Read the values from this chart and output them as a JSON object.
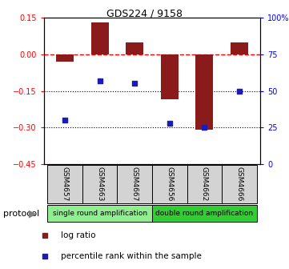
{
  "title": "GDS224 / 9158",
  "samples": [
    "GSM4657",
    "GSM4663",
    "GSM4667",
    "GSM4656",
    "GSM4662",
    "GSM4666"
  ],
  "log_ratio": [
    -0.03,
    0.13,
    0.05,
    -0.185,
    -0.31,
    0.05
  ],
  "percentile_rank": [
    30,
    57,
    55,
    28,
    25,
    50
  ],
  "ylim_left": [
    -0.45,
    0.15
  ],
  "ylim_right": [
    0,
    100
  ],
  "yticks_left": [
    0.15,
    0,
    -0.15,
    -0.3,
    -0.45
  ],
  "yticks_right": [
    100,
    75,
    50,
    25,
    0
  ],
  "hlines_dotted": [
    -0.15,
    -0.3
  ],
  "hline_dashed": 0,
  "bar_color": "#8B1A1A",
  "dot_color": "#1C1CB4",
  "group1_color": "#90EE90",
  "group2_color": "#32CD32",
  "group1_label": "single round amplification",
  "group2_label": "double round amplification",
  "protocol_label": "protocol",
  "legend_log_ratio": "log ratio",
  "legend_pct": "percentile rank within the sample"
}
